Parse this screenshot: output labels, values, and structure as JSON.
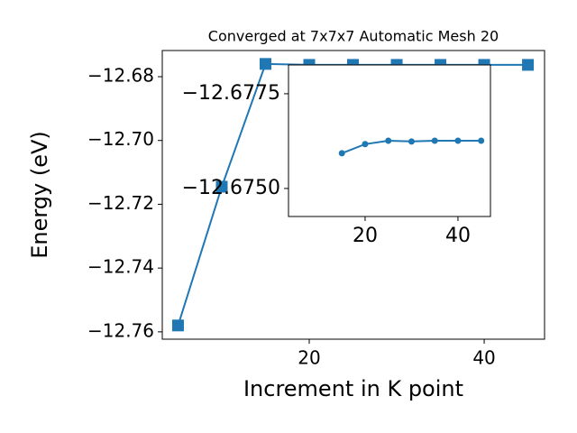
{
  "chart_data": [
    {
      "type": "line",
      "title": "Converged at 7x7x7 Automatic Mesh 20",
      "x_label": "Increment in K point",
      "y_label": "Energy (eV)",
      "x": [
        5,
        10,
        15,
        20,
        25,
        30,
        35,
        40,
        45
      ],
      "series": [
        {
          "color": "#1f77b4",
          "marker": "square",
          "values": [
            -12.758,
            -12.7145,
            -12.676,
            -12.6763,
            -12.6763,
            -12.6763,
            -12.6763,
            -12.6763,
            -12.6763
          ]
        }
      ],
      "xlim": [
        3.2,
        46.9
      ],
      "xticks": [
        20,
        40
      ],
      "ylim": [
        -12.7623,
        -12.6718
      ],
      "yticks": [
        {
          "value": -12.68,
          "label": "−12.68"
        },
        {
          "value": -12.7,
          "label": "−12.70"
        },
        {
          "value": -12.72,
          "label": "−12.72"
        },
        {
          "value": -12.74,
          "label": "−12.74"
        },
        {
          "value": -12.76,
          "label": "−12.76"
        }
      ]
    },
    {
      "type": "line",
      "inset": true,
      "x": [
        15,
        20,
        25,
        30,
        35,
        40,
        45
      ],
      "series": [
        {
          "color": "#1f77b4",
          "marker": "circle",
          "values": [
            -12.67593,
            -12.67617,
            -12.67626,
            -12.67624,
            -12.67626,
            -12.67626,
            -12.67626
          ]
        }
      ],
      "xlim": [
        3.5,
        47.0
      ],
      "xticks": [
        20,
        40
      ],
      "ylim": [
        -12.67426,
        -12.67826
      ],
      "yticks": [
        {
          "value": -12.6775,
          "label": "−12.6775"
        },
        {
          "value": -12.675,
          "label": "−12.6750"
        }
      ]
    }
  ]
}
